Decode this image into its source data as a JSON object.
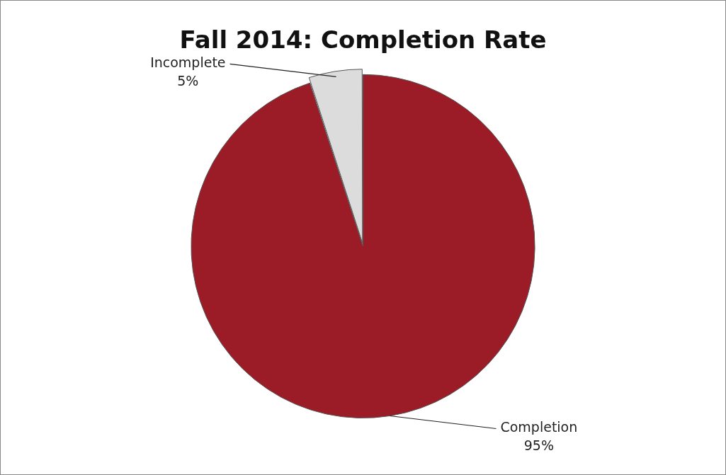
{
  "chart_data": {
    "type": "pie",
    "title": "Fall 2014: Completion Rate",
    "categories": [
      "Completion",
      "Incomplete"
    ],
    "values": [
      95,
      5
    ],
    "colors": [
      "#9b1c26",
      "#dcdcdc"
    ],
    "value_labels": [
      "95%",
      "5%"
    ],
    "legend": false
  }
}
